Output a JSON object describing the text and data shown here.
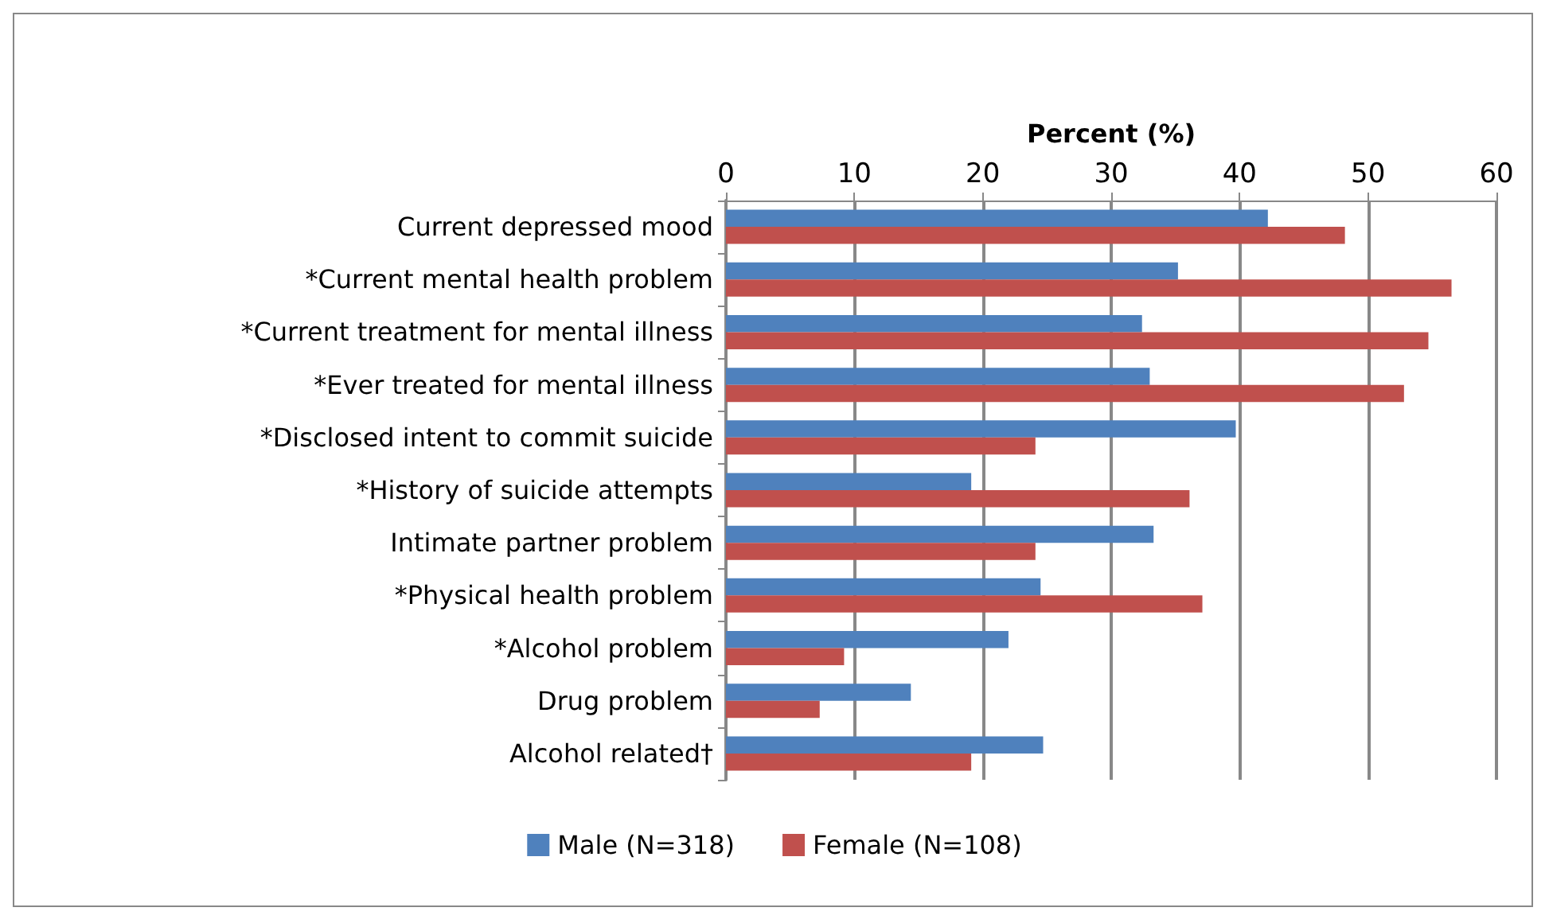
{
  "chart_data": {
    "type": "bar",
    "orientation": "horizontal",
    "xlabel": "Percent (%)",
    "categories": [
      "Current depressed mood",
      "*Current mental health problem",
      "*Current treatment for mental illness",
      "*Ever treated for mental illness",
      "*Disclosed intent to commit suicide",
      "*History of suicide attempts",
      "Intimate partner problem",
      "*Physical health problem",
      "*Alcohol problem",
      "Drug problem",
      "Alcohol related†"
    ],
    "series": [
      {
        "name": "Male (N=318)",
        "color": "#4f81bd",
        "values": [
          42.2,
          35.2,
          32.4,
          33.0,
          39.7,
          19.1,
          33.3,
          24.5,
          22.0,
          14.4,
          24.7
        ]
      },
      {
        "name": "Female (N=108)",
        "color": "#c0504d",
        "values": [
          48.2,
          56.5,
          54.7,
          52.8,
          24.1,
          36.1,
          24.1,
          37.1,
          9.2,
          7.3,
          19.1
        ]
      }
    ],
    "xlim": [
      0,
      60
    ],
    "xticks": [
      0,
      10,
      20,
      30,
      40,
      50,
      60
    ],
    "grid": "x",
    "legend": "bottom"
  }
}
